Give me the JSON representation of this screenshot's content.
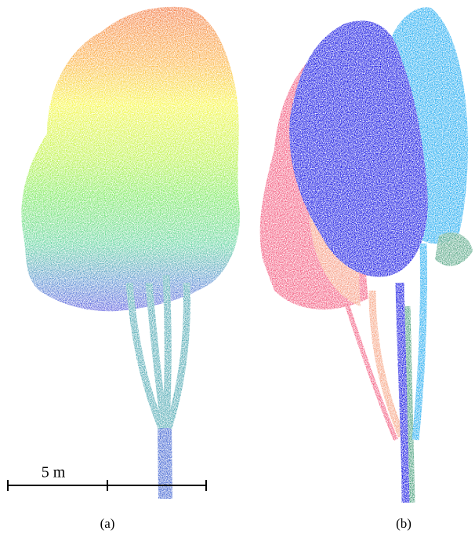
{
  "scale_bar": {
    "label": "5 m"
  },
  "panels": [
    {
      "label": "(a)"
    },
    {
      "label": "(b)"
    }
  ]
}
